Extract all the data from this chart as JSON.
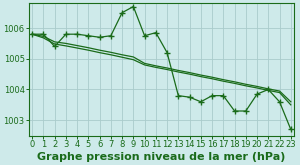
{
  "title": "Graphe pression niveau de la mer (hPa)",
  "bg_color": "#ceeaea",
  "grid_color": "#aacccc",
  "line_color": "#1a6b1a",
  "ylim": [
    1002.5,
    1006.8
  ],
  "xlim": [
    -0.3,
    23.3
  ],
  "yticks": [
    1003,
    1004,
    1005,
    1006
  ],
  "xticks": [
    0,
    1,
    2,
    3,
    4,
    5,
    6,
    7,
    8,
    9,
    10,
    11,
    12,
    13,
    14,
    15,
    16,
    17,
    18,
    19,
    20,
    21,
    22,
    23
  ],
  "jagged": [
    1005.8,
    1005.8,
    1005.4,
    1005.8,
    1005.8,
    1005.75,
    1005.7,
    1005.75,
    1006.5,
    1006.7,
    1005.75,
    1005.85,
    1005.2,
    1003.8,
    1003.75,
    1003.6,
    1003.8,
    1003.8,
    1003.3,
    1003.3,
    1003.85,
    1004.0,
    1003.6,
    1002.7
  ],
  "smooth1": [
    1005.8,
    1005.73,
    1005.55,
    1005.5,
    1005.43,
    1005.36,
    1005.28,
    1005.21,
    1005.13,
    1005.06,
    1004.85,
    1004.77,
    1004.7,
    1004.62,
    1004.55,
    1004.47,
    1004.4,
    1004.32,
    1004.25,
    1004.17,
    1004.1,
    1004.02,
    1003.95,
    1003.6
  ],
  "smooth2": [
    1005.8,
    1005.68,
    1005.48,
    1005.42,
    1005.35,
    1005.28,
    1005.2,
    1005.13,
    1005.05,
    1004.97,
    1004.8,
    1004.72,
    1004.65,
    1004.57,
    1004.5,
    1004.42,
    1004.35,
    1004.27,
    1004.2,
    1004.12,
    1004.05,
    1003.97,
    1003.9,
    1003.5
  ],
  "title_fontsize": 8,
  "tick_fontsize": 6
}
